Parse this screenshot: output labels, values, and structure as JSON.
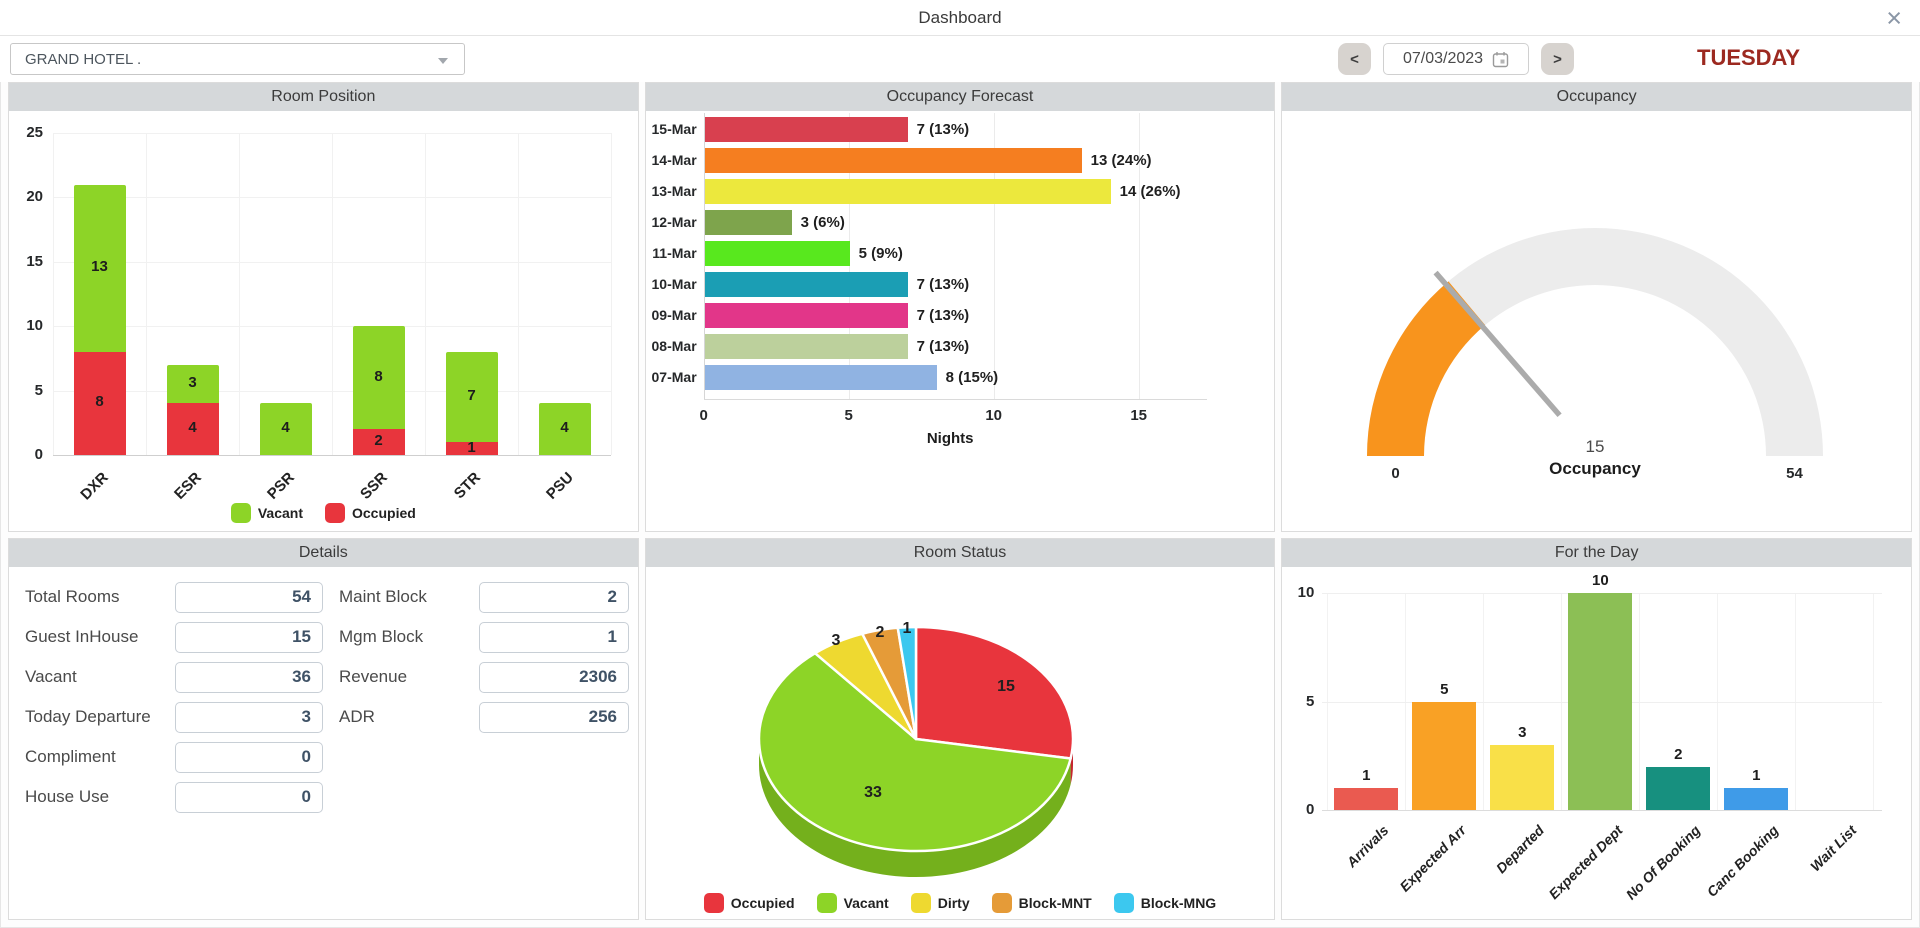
{
  "window": {
    "title": "Dashboard",
    "close_glyph": "×"
  },
  "topbar": {
    "hotel_selector": {
      "value": "GRAND HOTEL ."
    },
    "prev_label": "<",
    "date_value": "07/03/2023",
    "next_label": ">",
    "weekday": "TUESDAY"
  },
  "panels": {
    "room_position": {
      "title": "Room Position"
    },
    "occupancy_forecast": {
      "title": "Occupancy Forecast"
    },
    "occupancy": {
      "title": "Occupancy"
    },
    "details": {
      "title": "Details"
    },
    "room_status": {
      "title": "Room Status"
    },
    "for_the_day": {
      "title": "For the Day"
    }
  },
  "details": {
    "left": [
      {
        "label": "Total Rooms",
        "value": "54"
      },
      {
        "label": "Guest InHouse",
        "value": "15"
      },
      {
        "label": "Vacant",
        "value": "36"
      },
      {
        "label": "Today Departure",
        "value": "3"
      },
      {
        "label": "Compliment",
        "value": "0"
      },
      {
        "label": "House Use",
        "value": "0"
      }
    ],
    "right": [
      {
        "label": "Maint Block",
        "value": "2"
      },
      {
        "label": "Mgm Block",
        "value": "1"
      },
      {
        "label": "Revenue",
        "value": "2306"
      },
      {
        "label": "ADR",
        "value": "256"
      }
    ]
  },
  "chart_data": [
    {
      "id": "room_position",
      "type": "bar",
      "stacked": true,
      "title": "Room Position",
      "categories": [
        "DXR",
        "ESR",
        "PSR",
        "SSR",
        "STR",
        "PSU"
      ],
      "series": [
        {
          "name": "Occupied",
          "color": "#e8353d",
          "values": [
            8,
            4,
            0,
            2,
            1,
            0
          ]
        },
        {
          "name": "Vacant",
          "color": "#8dd427",
          "values": [
            13,
            3,
            4,
            8,
            7,
            4
          ]
        }
      ],
      "legend_order": [
        "Vacant",
        "Occupied"
      ],
      "ylim": [
        0,
        25
      ],
      "yticks": [
        0,
        5,
        10,
        15,
        20,
        25
      ],
      "grid": true,
      "legend_position": "bottom"
    },
    {
      "id": "occupancy_forecast",
      "type": "bar",
      "orientation": "horizontal",
      "title": "Occupancy Forecast",
      "xlabel": "Nights",
      "categories": [
        "15-Mar",
        "14-Mar",
        "13-Mar",
        "12-Mar",
        "11-Mar",
        "10-Mar",
        "09-Mar",
        "08-Mar",
        "07-Mar"
      ],
      "values": [
        7,
        13,
        14,
        3,
        5,
        7,
        7,
        7,
        8
      ],
      "bar_labels": [
        "7 (13%)",
        "13 (24%)",
        "14 (26%)",
        "3 (6%)",
        "5 (9%)",
        "7 (13%)",
        "7 (13%)",
        "7 (13%)",
        "8 (15%)"
      ],
      "colors": [
        "#d8404f",
        "#f57e20",
        "#ece83d",
        "#7ea44c",
        "#58e81e",
        "#1b9eb4",
        "#e23689",
        "#bcd09c",
        "#90b3e2"
      ],
      "xlim": [
        0,
        17
      ],
      "xticks": [
        0,
        5,
        10,
        15
      ],
      "grid": true
    },
    {
      "id": "occupancy_gauge",
      "type": "gauge",
      "title": "Occupancy",
      "value": 15,
      "min": 0,
      "max": 54,
      "center_label": "Occupancy",
      "value_color": "#f8941d",
      "track_color": "#ececec",
      "needle_color": "#ababab"
    },
    {
      "id": "room_status",
      "type": "pie",
      "style": "3d",
      "title": "Room Status",
      "labels": [
        "Occupied",
        "Vacant",
        "Dirty",
        "Block-MNT",
        "Block-MNG"
      ],
      "values": [
        15,
        33,
        3,
        2,
        1
      ],
      "colors": [
        "#e8353d",
        "#8dd427",
        "#eed930",
        "#e59b38",
        "#3cc8ef"
      ],
      "side_colors": [
        "#c5262e",
        "#74b01c",
        "#c8b418",
        "#c07f24",
        "#1ba4c9"
      ],
      "legend_position": "bottom"
    },
    {
      "id": "for_the_day",
      "type": "bar",
      "title": "For the Day",
      "categories": [
        "Arrivals",
        "Expected Arr",
        "Departed",
        "Expected Dept",
        "No Of Booking",
        "Canc Booking",
        "Wait List"
      ],
      "values": [
        1,
        5,
        3,
        10,
        2,
        1,
        0
      ],
      "colors": [
        "#ea5a50",
        "#f9a125",
        "#f9e048",
        "#8cbf55",
        "#17907f",
        "#3f9be8",
        "#cccccc"
      ],
      "ylim": [
        0,
        10
      ],
      "yticks": [
        0,
        5,
        10
      ],
      "grid": true
    }
  ]
}
